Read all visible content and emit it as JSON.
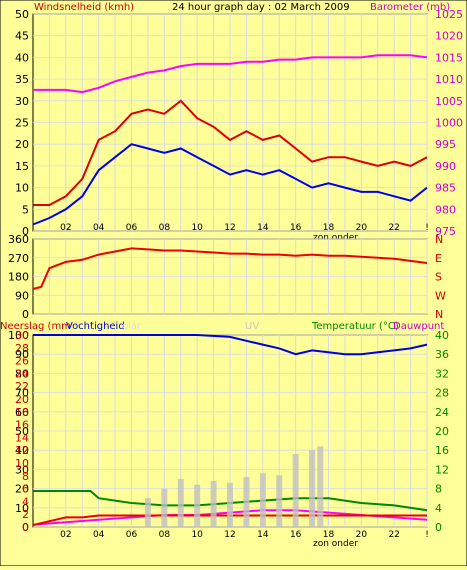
{
  "header": {
    "title": "24 hour graph day : 02 March 2009",
    "left_label": "Windsnelheid (kmh)",
    "right_label": "Barometer (mb)"
  },
  "panel3_labels": {
    "rain": "Neerslag (mm",
    "humidity": "Vochtigheid",
    "solar_ghost": "olar",
    "uv_ghost": "UV",
    "temp": "Temperatuur (°C)",
    "dew": "Dauwpunt"
  },
  "footer_label": "zon onder",
  "chart_data": [
    {
      "type": "line",
      "title": "24 hour graph day : 02 March 2009",
      "x_tick_labels": [
        "02",
        "04",
        "06",
        "08",
        "10",
        "12",
        "14",
        "16",
        "18",
        "20",
        "22",
        "!"
      ],
      "xlim": [
        0,
        24
      ],
      "y_left_label": "Windsnelheid (kmh)",
      "y_left_ticks": [
        0,
        5,
        10,
        15,
        20,
        25,
        30,
        35,
        40,
        45,
        50
      ],
      "ylim_left": [
        0,
        50
      ],
      "y_right_label": "Barometer (mb)",
      "y_right_ticks": [
        975,
        980,
        985,
        990,
        995,
        1000,
        1005,
        1010,
        1015,
        1020,
        1025
      ],
      "ylim_right": [
        975,
        1025
      ],
      "grid": true,
      "series": [
        {
          "axis": "right",
          "color": "#ff00ff",
          "x": [
            0,
            1,
            2,
            3,
            4,
            5,
            6,
            7,
            8,
            9,
            10,
            11,
            12,
            13,
            14,
            15,
            16,
            17,
            18,
            19,
            20,
            21,
            22,
            23,
            24
          ],
          "values": [
            1007.5,
            1007.5,
            1007.5,
            1007,
            1008,
            1009.5,
            1010.5,
            1011.5,
            1012,
            1013,
            1013.5,
            1013.5,
            1013.5,
            1014,
            1014,
            1014.5,
            1014.5,
            1015,
            1015,
            1015,
            1015,
            1015.5,
            1015.5,
            1015.5,
            1015
          ]
        },
        {
          "axis": "left",
          "color": "#dd0000",
          "x": [
            0,
            1,
            2,
            3,
            4,
            5,
            6,
            7,
            8,
            9,
            10,
            11,
            12,
            13,
            14,
            15,
            16,
            17,
            18,
            19,
            20,
            21,
            22,
            23,
            24
          ],
          "values": [
            6,
            6,
            8,
            12,
            21,
            23,
            27,
            28,
            27,
            30,
            26,
            24,
            21,
            23,
            21,
            22,
            19,
            16,
            17,
            17,
            16,
            15,
            16,
            15,
            17
          ]
        },
        {
          "axis": "left",
          "color": "#0000ee",
          "x": [
            0,
            1,
            2,
            3,
            4,
            5,
            6,
            7,
            8,
            9,
            10,
            11,
            12,
            13,
            14,
            15,
            16,
            17,
            18,
            19,
            20,
            21,
            22,
            23,
            24
          ],
          "values": [
            1.5,
            3,
            5,
            8,
            14,
            17,
            20,
            19,
            18,
            19,
            17,
            15,
            13,
            14,
            13,
            14,
            12,
            10,
            11,
            10,
            9,
            9,
            8,
            7,
            10
          ]
        }
      ]
    },
    {
      "type": "line",
      "x_tick_labels": [],
      "xlim": [
        0,
        24
      ],
      "y_left_ticks": [
        0,
        90,
        180,
        270,
        360
      ],
      "ylim_left": [
        0,
        360
      ],
      "y_right_ticks": [
        "N",
        "W",
        "S",
        "E",
        "N"
      ],
      "grid": true,
      "series": [
        {
          "color": "#ee0000",
          "x": [
            0,
            0.5,
            1,
            2,
            3,
            4,
            5,
            6,
            7,
            8,
            9,
            10,
            11,
            12,
            13,
            14,
            15,
            16,
            17,
            18,
            19,
            20,
            21,
            22,
            23,
            24
          ],
          "values": [
            120,
            130,
            220,
            250,
            260,
            285,
            300,
            315,
            310,
            305,
            305,
            300,
            295,
            290,
            290,
            285,
            285,
            280,
            285,
            280,
            280,
            275,
            270,
            265,
            255,
            245
          ]
        }
      ]
    },
    {
      "type": "line",
      "x_tick_labels": [
        "02",
        "04",
        "06",
        "08",
        "10",
        "12",
        "14",
        "16",
        "18",
        "20",
        "22",
        "!"
      ],
      "xlim": [
        0,
        24
      ],
      "y_left_label": "Neerslag (mm",
      "y_left_ticks": [
        0,
        10,
        20,
        30,
        40,
        50,
        60,
        70,
        80,
        90,
        100
      ],
      "y_left_ticks_extra": [
        0,
        2,
        4,
        6,
        8,
        10,
        12,
        14,
        16,
        18,
        20,
        22,
        24,
        26,
        28,
        30
      ],
      "ylim_left": [
        0,
        100
      ],
      "y_right_label": "Temperatuur (°C)",
      "y_right_ticks": [
        0,
        4,
        8,
        12,
        16,
        20,
        24,
        28,
        32,
        36,
        40
      ],
      "ylim_right": [
        0,
        40
      ],
      "grid": true,
      "series": [
        {
          "name": "Vochtigheid",
          "axis": "left",
          "color": "#0000dd",
          "x": [
            0,
            2,
            4,
            6,
            8,
            10,
            12,
            13,
            14,
            15,
            16,
            17,
            18,
            19,
            20,
            21,
            22,
            23,
            24
          ],
          "values": [
            100,
            100,
            100,
            100,
            100,
            100,
            99,
            97,
            95,
            93,
            90,
            92,
            91,
            90,
            90,
            91,
            92,
            93,
            95
          ]
        },
        {
          "axis": "right",
          "color": "#008800",
          "x": [
            0,
            2,
            3.5,
            4,
            5,
            6,
            8,
            10,
            12,
            14,
            16,
            18,
            20,
            22,
            24
          ],
          "values": [
            7.5,
            7.5,
            7.5,
            6,
            5.5,
            5,
            4.5,
            4.5,
            5,
            5.5,
            6,
            6,
            5,
            4.5,
            3.5
          ]
        },
        {
          "name": "Dauwpunt",
          "axis": "right",
          "color": "#ff00ff",
          "x": [
            0,
            2,
            4,
            6,
            8,
            10,
            12,
            14,
            16,
            18,
            20,
            22,
            24
          ],
          "values": [
            0.5,
            1,
            1.5,
            2,
            2.5,
            2.5,
            3,
            3.5,
            3.5,
            3,
            2.5,
            2,
            1.5
          ]
        },
        {
          "axis": "left",
          "color": "#ee0000",
          "x": [
            0,
            1,
            2,
            3,
            4,
            24
          ],
          "values": [
            1,
            3,
            5,
            5,
            6,
            6
          ]
        },
        {
          "name": "olar",
          "axis": "left",
          "color": "#bbbbbb",
          "x": [
            7,
            8,
            9,
            10,
            11,
            12,
            13,
            14,
            15,
            16,
            17,
            17.5
          ],
          "values": [
            15,
            20,
            25,
            22,
            24,
            23,
            26,
            28,
            27,
            38,
            40,
            42
          ]
        }
      ]
    }
  ]
}
